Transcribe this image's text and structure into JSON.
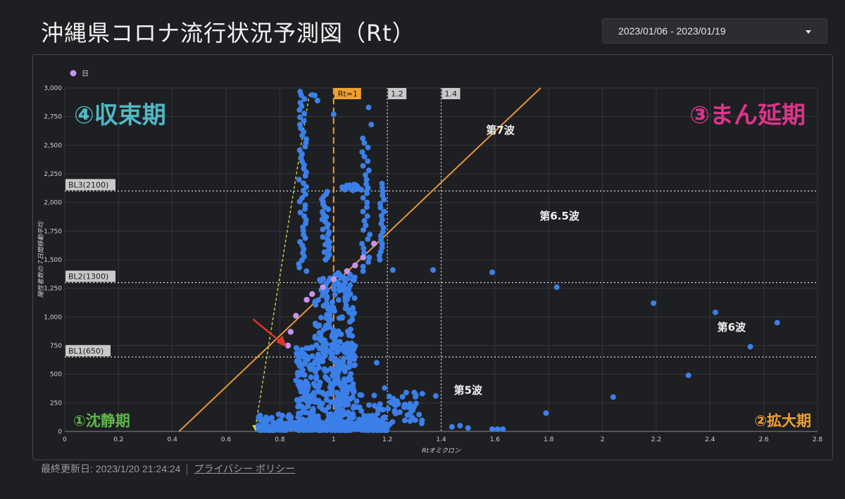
{
  "page": {
    "title": "沖縄県コロナ流行状況予測図（Rt）",
    "date_range": "2023/01/06 - 2023/01/19",
    "footer_updated": "最終更新日: 2023/1/20 21:24:24",
    "footer_link": "プライバシー ポリシー"
  },
  "colors": {
    "background": "#1e1f22",
    "points": "#3b7fe8",
    "highlight_points": "#c692f0",
    "diagonal_line": "#e8963a",
    "rt1_line": "#f0a030",
    "phase_converge": "#4fb8c4",
    "phase_spread": "#e0338c",
    "phase_calm": "#5fb84a",
    "phase_expand": "#f0a030"
  },
  "chart_data": {
    "type": "scatter",
    "xlabel": "Rtオミクロン",
    "ylabel": "陽性者数の７日間移動平均",
    "xlim": [
      0,
      2.8
    ],
    "ylim": [
      0,
      3000
    ],
    "x_ticks": [
      "0",
      "0.2",
      "0.4",
      "0.6",
      "0.8",
      "1",
      "1.2",
      "1.4",
      "1.6",
      "1.8",
      "2",
      "2.2",
      "2.4",
      "2.6",
      "2.8"
    ],
    "y_ticks": [
      "0",
      "250",
      "500",
      "750",
      "1,000",
      "1,250",
      "1,500",
      "1,750",
      "2,000",
      "2,250",
      "2,500",
      "2,750",
      "3,000"
    ],
    "grid": true,
    "legend": {
      "position": "top-left",
      "label": "日"
    },
    "thresholds": [
      {
        "label": "BL1(650)",
        "y": 650
      },
      {
        "label": "BL2(1300)",
        "y": 1300
      },
      {
        "label": "BL3(2100)",
        "y": 2100
      }
    ],
    "vlines": [
      {
        "label": "Rt=1",
        "x": 1.0,
        "style": "dashed-orange"
      },
      {
        "label": "1.2",
        "x": 1.2,
        "style": "dotted"
      },
      {
        "label": "1.4",
        "x": 1.4,
        "style": "dotted"
      }
    ],
    "diagonal": {
      "from": [
        0.425,
        0
      ],
      "to": [
        1.77,
        3000
      ]
    },
    "projection_line": {
      "from": [
        0.91,
        2950
      ],
      "to": [
        0.71,
        0
      ]
    },
    "quadrant_labels": [
      "④収束期",
      "③まん延期",
      "①沈静期",
      "②拡大期"
    ],
    "wave_labels": [
      {
        "text": "第7波",
        "x": 1.62,
        "y": 2600
      },
      {
        "text": "第6.5波",
        "x": 1.84,
        "y": 1850
      },
      {
        "text": "第6波",
        "x": 2.48,
        "y": 880
      },
      {
        "text": "第5波",
        "x": 1.5,
        "y": 330
      }
    ],
    "series_named": [
      {
        "name": "日",
        "points": [
          [
            0.83,
            750
          ],
          [
            0.84,
            870
          ],
          [
            0.86,
            1010
          ],
          [
            0.9,
            1150
          ],
          [
            0.92,
            1200
          ],
          [
            0.96,
            1260
          ],
          [
            1.0,
            1330
          ],
          [
            1.05,
            1400
          ],
          [
            1.08,
            1450
          ],
          [
            1.11,
            1520
          ],
          [
            1.15,
            1640
          ]
        ]
      }
    ],
    "series_outliers": [
      [
        1.22,
        1410
      ],
      [
        1.37,
        1410
      ],
      [
        1.59,
        1390
      ],
      [
        1.83,
        1260
      ],
      [
        2.19,
        1120
      ],
      [
        2.42,
        1040
      ],
      [
        2.65,
        950
      ],
      [
        2.55,
        740
      ],
      [
        2.32,
        490
      ],
      [
        2.04,
        300
      ],
      [
        1.79,
        160
      ],
      [
        1.59,
        20
      ],
      [
        1.61,
        20
      ],
      [
        1.63,
        20
      ],
      [
        1.5,
        30
      ],
      [
        1.47,
        50
      ],
      [
        1.44,
        40
      ],
      [
        1.33,
        330
      ],
      [
        1.3,
        340
      ],
      [
        1.27,
        340
      ],
      [
        1.38,
        310
      ],
      [
        1.24,
        240
      ],
      [
        1.19,
        380
      ],
      [
        1.16,
        600
      ]
    ]
  }
}
